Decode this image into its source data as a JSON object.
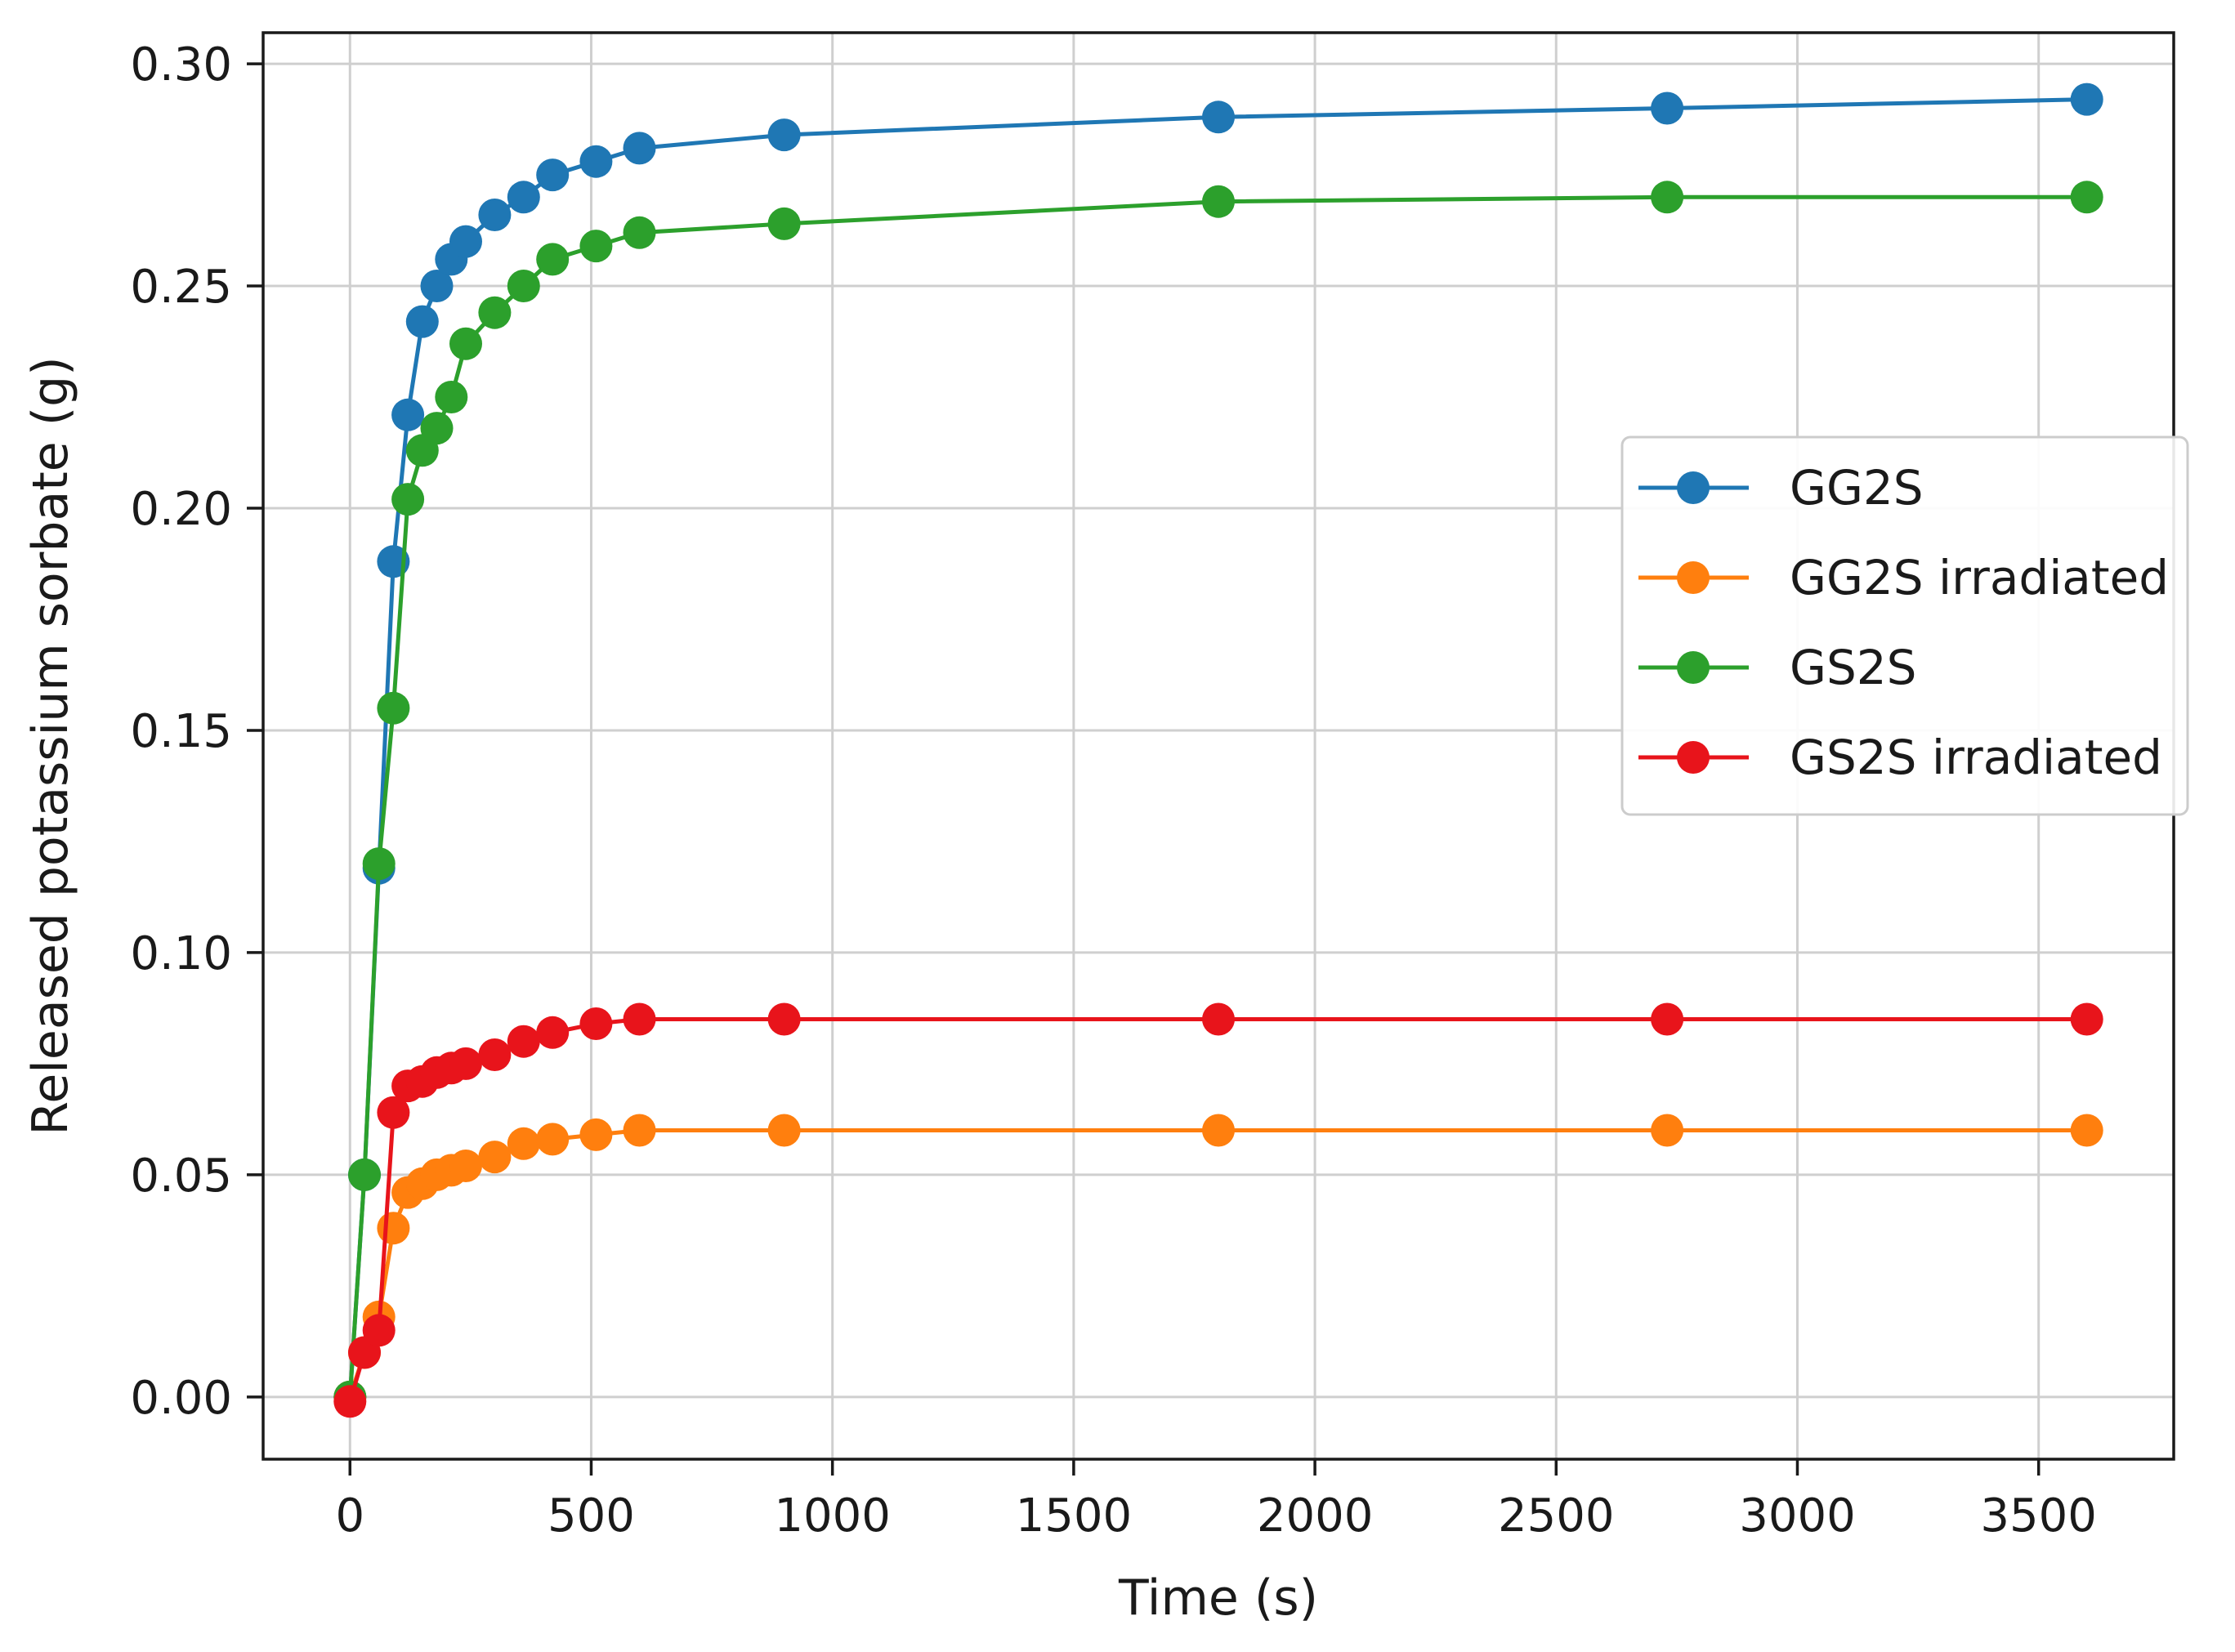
{
  "chart_data": {
    "type": "line",
    "xlabel": "Time (s)",
    "ylabel": "Released potassium sorbate (g)",
    "xlim": [
      -180,
      3780
    ],
    "ylim": [
      -0.014,
      0.307
    ],
    "xticks": [
      0,
      500,
      1000,
      1500,
      2000,
      2500,
      3000,
      3500
    ],
    "xtick_labels": [
      "0",
      "500",
      "1000",
      "1500",
      "2000",
      "2500",
      "3000",
      "3500"
    ],
    "yticks": [
      0.0,
      0.05,
      0.1,
      0.15,
      0.2,
      0.25,
      0.3
    ],
    "ytick_labels": [
      "0.00",
      "0.05",
      "0.10",
      "0.15",
      "0.20",
      "0.25",
      "0.30"
    ],
    "grid": true,
    "legend_position": "center-right",
    "series": [
      {
        "name": "GG2S",
        "color": "#1f77b4",
        "x": [
          0,
          30,
          60,
          90,
          120,
          150,
          180,
          210,
          240,
          300,
          360,
          420,
          510,
          600,
          900,
          1800,
          2730,
          3600
        ],
        "y": [
          0.0,
          0.05,
          0.119,
          0.188,
          0.221,
          0.242,
          0.25,
          0.256,
          0.26,
          0.266,
          0.27,
          0.275,
          0.278,
          0.281,
          0.284,
          0.288,
          0.29,
          0.292
        ]
      },
      {
        "name": "GG2S irradiated",
        "color": "#ff7f0e",
        "x": [
          0,
          30,
          60,
          90,
          120,
          150,
          180,
          210,
          240,
          300,
          360,
          420,
          510,
          600,
          900,
          1800,
          2730,
          3600
        ],
        "y": [
          0.0,
          0.01,
          0.018,
          0.038,
          0.046,
          0.048,
          0.05,
          0.051,
          0.052,
          0.054,
          0.057,
          0.058,
          0.059,
          0.06,
          0.06,
          0.06,
          0.06,
          0.06
        ]
      },
      {
        "name": "GS2S",
        "color": "#2ca02c",
        "x": [
          0,
          30,
          60,
          90,
          120,
          150,
          180,
          210,
          240,
          300,
          360,
          420,
          510,
          600,
          900,
          1800,
          2730,
          3600
        ],
        "y": [
          0.0,
          0.05,
          0.12,
          0.155,
          0.202,
          0.213,
          0.218,
          0.225,
          0.237,
          0.244,
          0.25,
          0.256,
          0.259,
          0.262,
          0.264,
          0.269,
          0.27,
          0.27
        ]
      },
      {
        "name": "GS2S irradiated",
        "color": "#e8141b",
        "x": [
          0,
          30,
          60,
          90,
          120,
          150,
          180,
          210,
          240,
          300,
          360,
          420,
          510,
          600,
          900,
          1800,
          2730,
          3600
        ],
        "y": [
          -0.001,
          0.01,
          0.015,
          0.064,
          0.07,
          0.071,
          0.073,
          0.074,
          0.075,
          0.077,
          0.08,
          0.082,
          0.084,
          0.085,
          0.085,
          0.085,
          0.085,
          0.085
        ]
      }
    ]
  }
}
